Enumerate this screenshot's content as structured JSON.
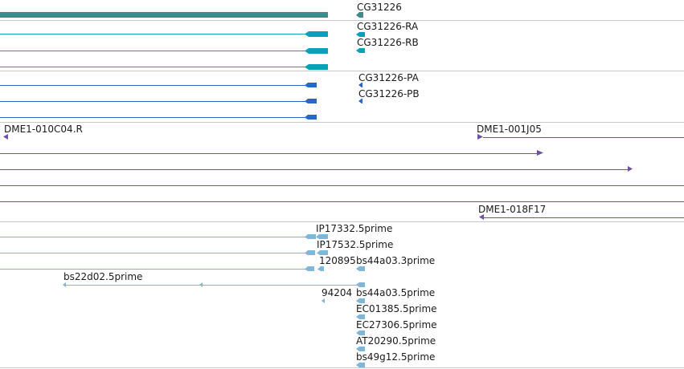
{
  "colors": {
    "gene": "#3d8b8b",
    "mrna": "#0aa0b8",
    "protein": "#2a66c8",
    "clone": "#7050a8",
    "est": "#7fb6da",
    "divider": "#c8c8c8",
    "label": "#1a1a1a"
  },
  "tracks": {
    "gene": {
      "labels": [
        "CG31226"
      ]
    },
    "transcripts": {
      "labels": [
        "CG31226-RA",
        "CG31226-RB"
      ]
    },
    "proteins": {
      "labels": [
        "CG31226-PA",
        "CG31226-PB"
      ]
    },
    "clones": {
      "labels": [
        "DME1-010C04.R",
        "DME1-001J05",
        "DME1-018F17"
      ]
    },
    "ests": {
      "labels": [
        "IP17332.5prime",
        "IP17532.5prime",
        "120895",
        "bs44a03.3prime",
        "bs22d02.5prime",
        "94204",
        "bs44a03.5prime",
        "EC01385.5prime",
        "EC27306.5prime",
        "AT20290.5prime",
        "bs49g12.5prime"
      ]
    }
  }
}
